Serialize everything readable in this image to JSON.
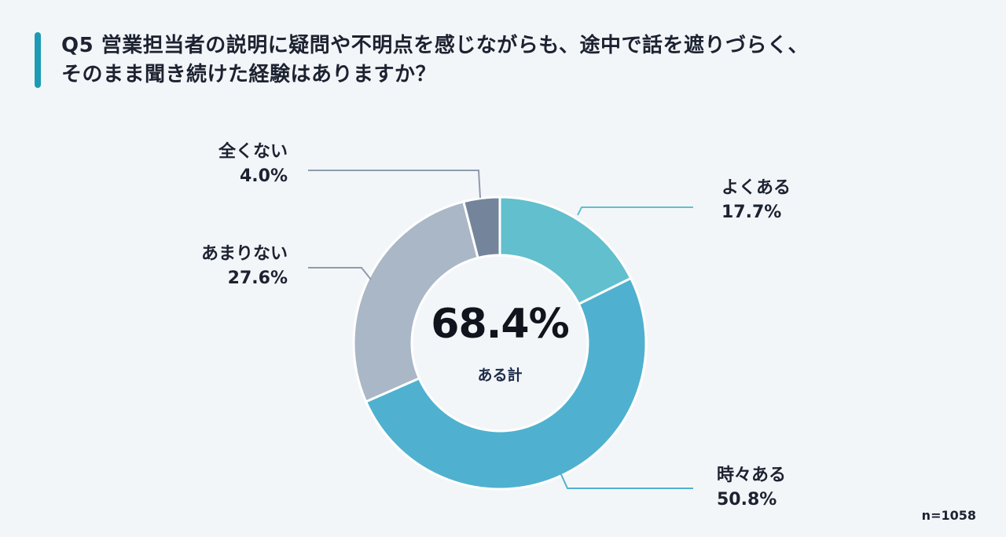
{
  "title": {
    "line1": "Q5 営業担当者の説明に疑問や不明点を感じながらも、途中で話を遮りづらく、",
    "line2": "そのまま聞き続けた経験はありますか？"
  },
  "chart_data": {
    "type": "donut",
    "title": "Q5 営業担当者の説明に疑問や不明点を感じながらも、途中で話を遮りづらく、そのまま聞き続けた経験はありますか？",
    "unit": "%",
    "start": "12 o'clock, clockwise",
    "slices": [
      {
        "label": "よくある",
        "value": 17.7,
        "display": "17.7%",
        "color": "#62bfcd"
      },
      {
        "label": "時々ある",
        "value": 50.8,
        "display": "50.8%",
        "color": "#4fb1cf"
      },
      {
        "label": "あまりない",
        "value": 27.6,
        "display": "27.6%",
        "color": "#aab7c6"
      },
      {
        "label": "全くない",
        "value": 4.0,
        "display": "4.0%",
        "color": "#74859b"
      }
    ],
    "center": {
      "value": "68.4%",
      "label": "ある計"
    },
    "note": "n=1058",
    "leader_color": "#8e9bad"
  }
}
